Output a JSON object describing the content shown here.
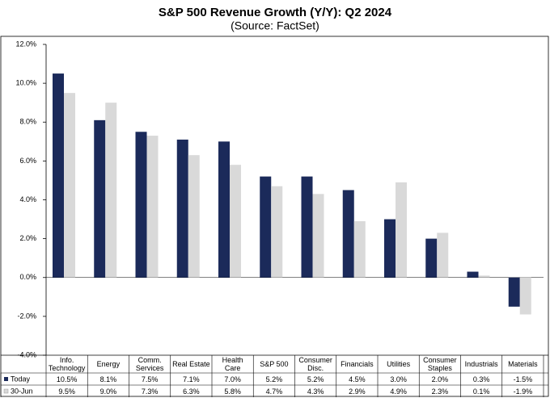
{
  "chart_data": {
    "type": "bar",
    "title": "S&P 500 Revenue Growth (Y/Y): Q2 2024",
    "subtitle": "(Source: FactSet)",
    "categories": [
      "Info. Technology",
      "Energy",
      "Comm. Services",
      "Real Estate",
      "Health Care",
      "S&P 500",
      "Consumer Disc.",
      "Financials",
      "Utilities",
      "Consumer Staples",
      "Industrials",
      "Materials"
    ],
    "series": [
      {
        "name": "Today",
        "color": "#1b2a5a",
        "values": [
          10.5,
          8.1,
          7.5,
          7.1,
          7.0,
          5.2,
          5.2,
          4.5,
          3.0,
          2.0,
          0.3,
          -1.5
        ],
        "value_labels": [
          "10.5%",
          "8.1%",
          "7.5%",
          "7.1%",
          "7.0%",
          "5.2%",
          "5.2%",
          "4.5%",
          "3.0%",
          "2.0%",
          "0.3%",
          "-1.5%"
        ]
      },
      {
        "name": "30-Jun",
        "color": "#d9d9d9",
        "values": [
          9.5,
          9.0,
          7.3,
          6.3,
          5.8,
          4.7,
          4.3,
          2.9,
          4.9,
          2.3,
          0.1,
          -1.9
        ],
        "value_labels": [
          "9.5%",
          "9.0%",
          "7.3%",
          "6.3%",
          "5.8%",
          "4.7%",
          "4.3%",
          "2.9%",
          "4.9%",
          "2.3%",
          "0.1%",
          "-1.9%"
        ]
      }
    ],
    "ylim": [
      -4,
      12
    ],
    "yticks": [
      {
        "value": -4,
        "label": "-4.0%"
      },
      {
        "value": -2,
        "label": "-2.0%"
      },
      {
        "value": 0,
        "label": "0.0%"
      },
      {
        "value": 2,
        "label": "2.0%"
      },
      {
        "value": 4,
        "label": "4.0%"
      },
      {
        "value": 6,
        "label": "6.0%"
      },
      {
        "value": 8,
        "label": "8.0%"
      },
      {
        "value": 10,
        "label": "10.0%"
      },
      {
        "value": 12,
        "label": "12.0%"
      }
    ]
  }
}
